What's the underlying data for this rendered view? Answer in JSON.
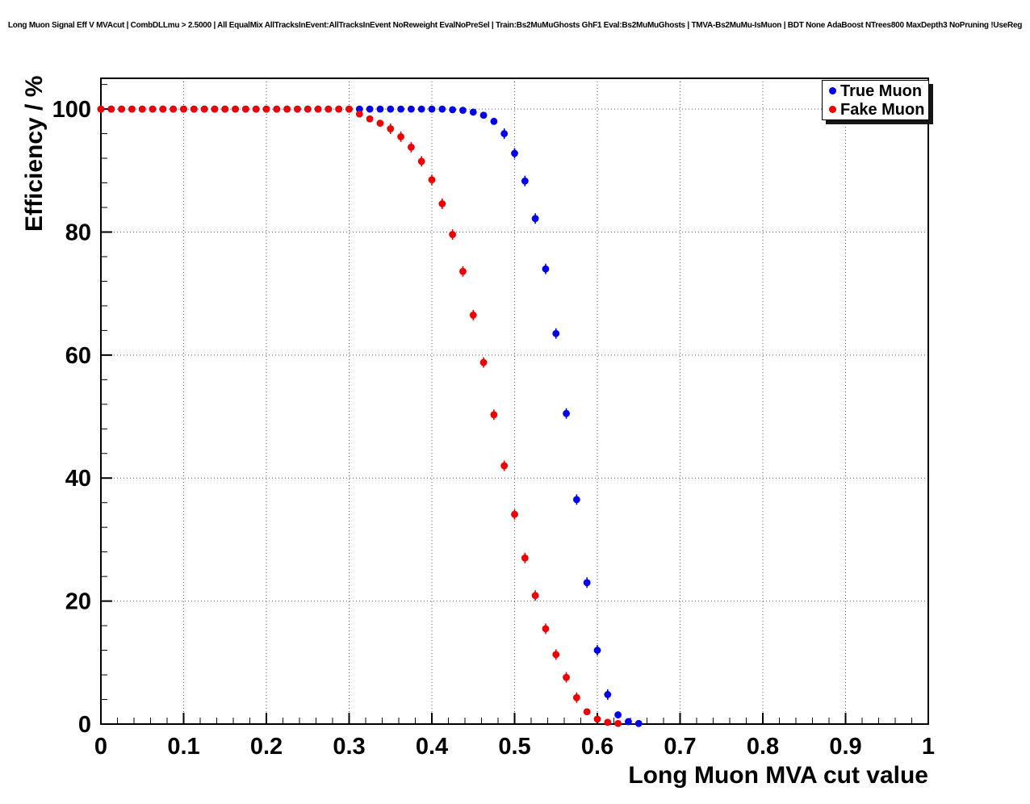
{
  "chart_data": {
    "type": "scatter",
    "title": "Long Muon Signal Eff V MVAcut | CombDLLmu > 2.5000 | All EqualMix AllTracksInEvent:AllTracksInEvent NoReweight EvalNoPreSel | Train:Bs2MuMuGhosts GhF1 Eval:Bs2MuMuGhosts | TMVA-Bs2MuMu-IsMuon | BDT None AdaBoost NTrees800 MaxDepth3 NoPruning !UseReg",
    "xlabel": "Long Muon MVA cut value",
    "ylabel": "Efficiency / %",
    "xlim": [
      0,
      1
    ],
    "ylim": [
      0,
      105
    ],
    "x_ticks": [
      0,
      0.1,
      0.2,
      0.3,
      0.4,
      0.5,
      0.6,
      0.7,
      0.8,
      0.9,
      1
    ],
    "x_tick_labels": [
      "0",
      "0.1",
      "0.2",
      "0.3",
      "0.4",
      "0.5",
      "0.6",
      "0.7",
      "0.8",
      "0.9",
      "1"
    ],
    "y_ticks": [
      0,
      20,
      40,
      60,
      80,
      100
    ],
    "y_tick_labels": [
      "0",
      "20",
      "40",
      "60",
      "80",
      "100"
    ],
    "grid": true,
    "legend_position": "top-right",
    "marker": "filled-circle",
    "frame_color": "#000000",
    "grid_color": "#555555",
    "series": [
      {
        "name": "True Muon",
        "color": "#0000ee",
        "x": [
          0,
          0.0125,
          0.025,
          0.0375,
          0.05,
          0.0625,
          0.075,
          0.0875,
          0.1,
          0.1125,
          0.125,
          0.1375,
          0.15,
          0.1625,
          0.175,
          0.1875,
          0.2,
          0.2125,
          0.225,
          0.2375,
          0.25,
          0.2625,
          0.275,
          0.2875,
          0.3,
          0.3125,
          0.325,
          0.3375,
          0.35,
          0.3625,
          0.375,
          0.3875,
          0.4,
          0.4125,
          0.425,
          0.4375,
          0.45,
          0.4625,
          0.475,
          0.4875,
          0.5,
          0.5125,
          0.525,
          0.5375,
          0.55,
          0.5625,
          0.575,
          0.5875,
          0.6,
          0.6125,
          0.625,
          0.6375,
          0.65
        ],
        "y": [
          100,
          100,
          100,
          100,
          100,
          100,
          100,
          100,
          100,
          100,
          100,
          100,
          100,
          100,
          100,
          100,
          100,
          100,
          100,
          100,
          100,
          100,
          100,
          100,
          100,
          100,
          100,
          100,
          100,
          100,
          100,
          100,
          100,
          100,
          99.9,
          99.8,
          99.5,
          99.0,
          98.0,
          96.0,
          92.8,
          88.3,
          82.2,
          74.0,
          63.5,
          50.5,
          36.5,
          23.0,
          12.0,
          4.8,
          1.5,
          0.4,
          0.1
        ]
      },
      {
        "name": "Fake Muon",
        "color": "#ee0000",
        "x": [
          0,
          0.0125,
          0.025,
          0.0375,
          0.05,
          0.0625,
          0.075,
          0.0875,
          0.1,
          0.1125,
          0.125,
          0.1375,
          0.15,
          0.1625,
          0.175,
          0.1875,
          0.2,
          0.2125,
          0.225,
          0.2375,
          0.25,
          0.2625,
          0.275,
          0.2875,
          0.3,
          0.3125,
          0.325,
          0.3375,
          0.35,
          0.3625,
          0.375,
          0.3875,
          0.4,
          0.4125,
          0.425,
          0.4375,
          0.45,
          0.4625,
          0.475,
          0.4875,
          0.5,
          0.5125,
          0.525,
          0.5375,
          0.55,
          0.5625,
          0.575,
          0.5875,
          0.6,
          0.6125,
          0.625
        ],
        "y": [
          100,
          100,
          100,
          100,
          100,
          100,
          100,
          100,
          100,
          100,
          100,
          100,
          100,
          100,
          100,
          100,
          100,
          100,
          100,
          100,
          100,
          100,
          100,
          100,
          100,
          99.2,
          98.4,
          97.7,
          96.8,
          95.5,
          93.8,
          91.5,
          88.5,
          84.6,
          79.6,
          73.6,
          66.5,
          58.8,
          50.3,
          42.0,
          34.1,
          27.0,
          20.9,
          15.5,
          11.3,
          7.6,
          4.3,
          2.0,
          0.8,
          0.3,
          0.1
        ]
      }
    ]
  }
}
